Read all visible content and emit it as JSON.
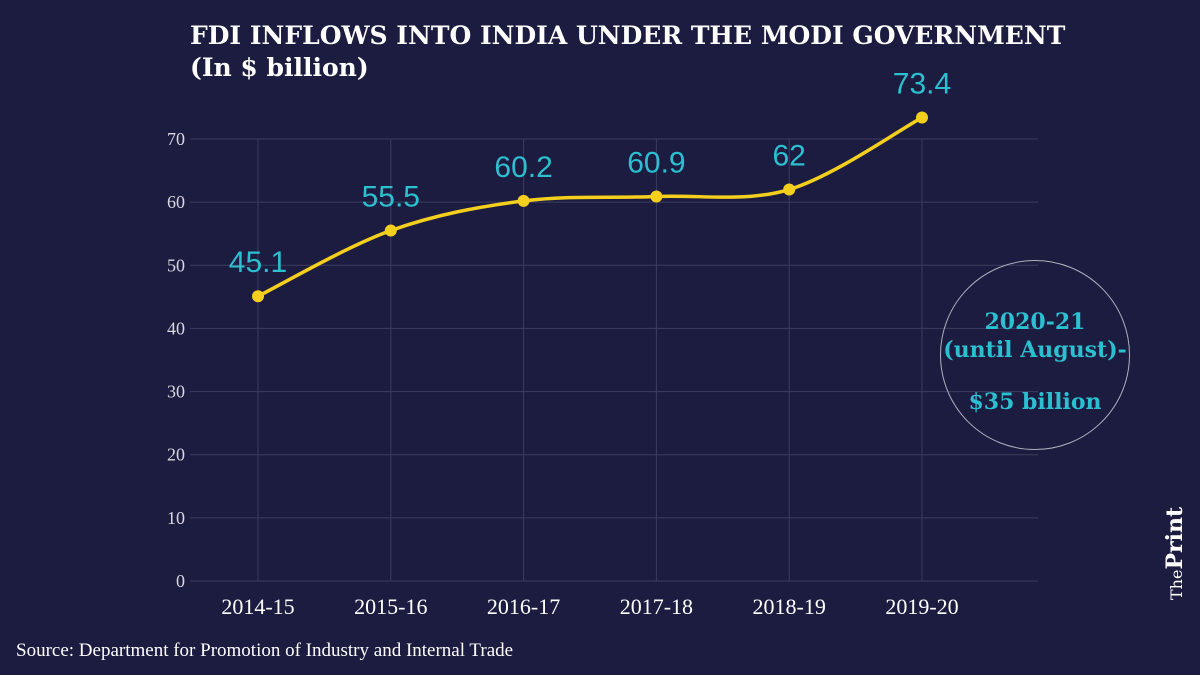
{
  "title": {
    "line1": "FDI INFLOWS INTO INDIA UNDER THE MODI GOVERNMENT",
    "line2": "(In $ billion)"
  },
  "chart_data": {
    "type": "line",
    "categories": [
      "2014-15",
      "2015-16",
      "2016-17",
      "2017-18",
      "2018-19",
      "2019-20"
    ],
    "values": [
      45.1,
      55.5,
      60.2,
      60.9,
      62,
      73.4
    ],
    "labels": [
      "45.1",
      "55.5",
      "60.2",
      "60.9",
      "62",
      "73.4"
    ],
    "yticks": [
      0,
      10,
      20,
      30,
      40,
      50,
      60,
      70
    ],
    "ylim": [
      0,
      70
    ],
    "grid": true,
    "xlabel": "",
    "ylabel": ""
  },
  "callout": {
    "line1": "2020-21",
    "line2": "(until August)-",
    "amount": "$35 billion"
  },
  "source": "Source: Department for Promotion of Industry and Internal Trade",
  "brand": {
    "prefix": "The",
    "name": "Print"
  },
  "colors": {
    "background": "#1c1c41",
    "line": "#f5cf1d",
    "label": "#2bbfcf",
    "grid": "#3c3c5e"
  }
}
